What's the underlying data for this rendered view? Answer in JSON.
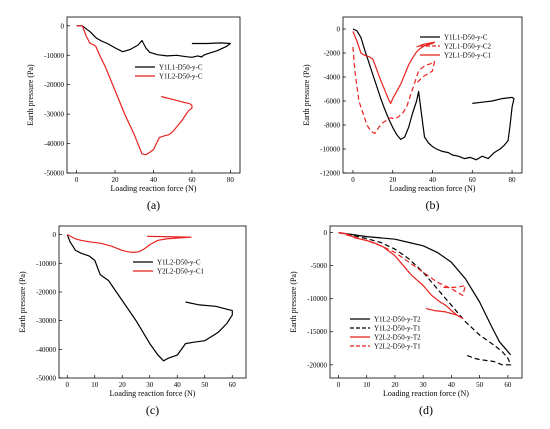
{
  "chart_data": [
    {
      "type": "line",
      "label": "(a)",
      "xlabel": "Loading reaction force (N)",
      "ylabel": "Earth pressure (Pa)",
      "xlim": [
        -5,
        85
      ],
      "ylim": [
        -50000,
        3000
      ],
      "xticks": [
        0,
        20,
        40,
        60,
        80
      ],
      "yticks": [
        0,
        -10000,
        -20000,
        -30000,
        -40000,
        -50000
      ],
      "legend_position": "right",
      "series": [
        {
          "name": "Y1L1-D50-y-C",
          "color": "#000000",
          "dash": "",
          "x": [
            0,
            3,
            5,
            7,
            10,
            13,
            16,
            20,
            24,
            28,
            32,
            34,
            36,
            38,
            42,
            47,
            52,
            57,
            60,
            63,
            65,
            66,
            68,
            73,
            78,
            80,
            75,
            68,
            60
          ],
          "y": [
            0,
            0,
            -1000,
            -2000,
            -4000,
            -5200,
            -6000,
            -7500,
            -8800,
            -8000,
            -6500,
            -5000,
            -7500,
            -9000,
            -9800,
            -10200,
            -10000,
            -10500,
            -10700,
            -10200,
            -10600,
            -10000,
            -9500,
            -8500,
            -7000,
            -6000,
            -5800,
            -6000,
            -6000
          ]
        },
        {
          "name": "Y1L2-D50-y-C",
          "color": "#e8231f",
          "dash": "",
          "x": [
            0,
            3,
            5,
            7,
            9,
            10,
            12,
            15,
            20,
            25,
            30,
            34,
            36,
            38,
            40,
            43,
            45,
            48,
            50,
            55,
            58,
            60,
            60,
            59,
            56,
            50,
            44
          ],
          "y": [
            0,
            0,
            -3500,
            -6000,
            -6500,
            -7000,
            -10000,
            -14000,
            -22000,
            -30000,
            -37000,
            -43500,
            -43800,
            -43000,
            -42000,
            -38000,
            -37500,
            -37000,
            -36000,
            -32000,
            -29000,
            -28000,
            -27000,
            -26500,
            -26000,
            -25000,
            -24000
          ]
        }
      ]
    },
    {
      "type": "line",
      "label": "(b)",
      "xlabel": "Loading reaction force (N)",
      "ylabel": "Earth pressure (Pa)",
      "xlim": [
        -5,
        85
      ],
      "ylim": [
        -12000,
        1000
      ],
      "xticks": [
        0,
        20,
        40,
        60,
        80
      ],
      "yticks": [
        0,
        -2000,
        -4000,
        -6000,
        -8000,
        -10000,
        -12000
      ],
      "legend_position": "top-right",
      "series": [
        {
          "name": "Y1L1-D50-y-C",
          "color": "#000000",
          "dash": "",
          "x": [
            0,
            2,
            4,
            6,
            8,
            10,
            12,
            14,
            16,
            18,
            20,
            22,
            24,
            26,
            28,
            30,
            32,
            33,
            34,
            35,
            36,
            38,
            40,
            42,
            45,
            48,
            50,
            53,
            56,
            59,
            62,
            65,
            68,
            71,
            74,
            76,
            78,
            79,
            80,
            81,
            80,
            75,
            70,
            65,
            60
          ],
          "y": [
            0,
            -150,
            -700,
            -1800,
            -2800,
            -3800,
            -4800,
            -5800,
            -6700,
            -7500,
            -8200,
            -8800,
            -9200,
            -9000,
            -8200,
            -7000,
            -6000,
            -5200,
            -6500,
            -7800,
            -9000,
            -9500,
            -9800,
            -10000,
            -10200,
            -10300,
            -10500,
            -10600,
            -10800,
            -10700,
            -10900,
            -10600,
            -10800,
            -10300,
            -10000,
            -9700,
            -9300,
            -8000,
            -6500,
            -5800,
            -5700,
            -5800,
            -6000,
            -6100,
            -6200
          ]
        },
        {
          "name": "Y2L1-D50-y-C2",
          "color": "#e8231f",
          "dash": "5,3",
          "x": [
            0,
            1,
            3,
            5,
            7,
            9,
            11,
            13,
            15,
            17,
            19,
            21,
            23,
            25,
            27,
            29,
            31,
            33,
            35,
            37,
            39,
            41,
            40,
            38,
            35,
            32
          ],
          "y": [
            -1500,
            -3500,
            -6000,
            -7000,
            -8000,
            -8500,
            -8700,
            -8200,
            -7800,
            -7600,
            -7400,
            -7500,
            -7300,
            -7000,
            -6500,
            -5500,
            -4500,
            -3500,
            -3200,
            -3000,
            -2900,
            -2700,
            -3500,
            -3700,
            -4000,
            -4500
          ]
        },
        {
          "name": "Y2L1-D50-y-C1",
          "color": "#e8231f",
          "dash": "",
          "x": [
            0,
            2,
            4,
            6,
            8,
            10,
            12,
            14,
            16,
            18,
            19,
            20,
            22,
            24,
            26,
            28,
            30,
            32,
            34,
            36,
            38,
            40,
            41,
            38,
            35,
            32
          ],
          "y": [
            -200,
            -1000,
            -2000,
            -2200,
            -2300,
            -2500,
            -3400,
            -4300,
            -5100,
            -5900,
            -6200,
            -5800,
            -5200,
            -4600,
            -3800,
            -3000,
            -2400,
            -1900,
            -1600,
            -1400,
            -1300,
            -1200,
            -1100,
            -1200,
            -1300,
            -1500
          ]
        }
      ]
    },
    {
      "type": "line",
      "label": "(c)",
      "xlabel": "Loading reaction force (N)",
      "ylabel": "Earth pressure (Pa)",
      "xlim": [
        -3,
        65
      ],
      "ylim": [
        -50000,
        3000
      ],
      "xticks": [
        0,
        10,
        20,
        30,
        40,
        50,
        60
      ],
      "yticks": [
        0,
        -10000,
        -20000,
        -30000,
        -40000,
        -50000
      ],
      "legend_position": "top-right",
      "series": [
        {
          "name": "Y1L2-D50-y-C",
          "color": "#000000",
          "dash": "",
          "x": [
            0,
            1,
            2,
            3,
            5,
            8,
            10,
            12,
            15,
            20,
            25,
            30,
            33,
            35,
            37,
            40,
            43,
            46,
            50,
            55,
            58,
            60,
            60,
            58,
            54,
            48,
            43
          ],
          "y": [
            0,
            -2500,
            -4000,
            -5500,
            -6500,
            -7500,
            -9000,
            -14000,
            -16000,
            -23000,
            -30000,
            -38000,
            -42000,
            -44000,
            -43000,
            -42000,
            -38000,
            -37500,
            -37000,
            -34000,
            -31000,
            -28000,
            -26500,
            -26000,
            -25000,
            -24500,
            -23500
          ]
        },
        {
          "name": "Y2L2-D50-y-C1",
          "color": "#e8231f",
          "dash": "",
          "x": [
            0,
            1,
            3,
            5,
            8,
            12,
            16,
            20,
            22,
            24,
            26,
            28,
            30,
            33,
            36,
            40,
            43,
            45,
            40,
            35,
            29
          ],
          "y": [
            0,
            -500,
            -1500,
            -2000,
            -2500,
            -3000,
            -4000,
            -5500,
            -6000,
            -6200,
            -6000,
            -5000,
            -3500,
            -2000,
            -1500,
            -1200,
            -1000,
            -900,
            -800,
            -700,
            -600
          ]
        }
      ]
    },
    {
      "type": "line",
      "label": "(d)",
      "xlabel": "Loading reaction force (N)",
      "ylabel": "Earth pressure (Pa)",
      "xlim": [
        -3,
        65
      ],
      "ylim": [
        -22000,
        1000
      ],
      "xticks": [
        0,
        10,
        20,
        30,
        40,
        50,
        60
      ],
      "yticks": [
        0,
        -5000,
        -10000,
        -15000,
        -20000
      ],
      "legend_position": "bottom-left",
      "series": [
        {
          "name": "Y1L2-D50-y-T2",
          "color": "#000000",
          "dash": "",
          "x": [
            0,
            5,
            10,
            15,
            20,
            25,
            30,
            35,
            40,
            45,
            50,
            54,
            57,
            59,
            60,
            61
          ],
          "y": [
            0,
            -300,
            -600,
            -800,
            -1000,
            -1500,
            -2000,
            -3000,
            -4500,
            -7000,
            -10500,
            -14000,
            -16500,
            -17500,
            -18000,
            -18500
          ]
        },
        {
          "name": "Y1L2-D50-y-T1",
          "color": "#000000",
          "dash": "5,3",
          "x": [
            0,
            5,
            10,
            15,
            20,
            25,
            30,
            35,
            40,
            45,
            50,
            55,
            58,
            60,
            61,
            58,
            55,
            50,
            48,
            45
          ],
          "y": [
            0,
            -400,
            -900,
            -1500,
            -2500,
            -4000,
            -6000,
            -8500,
            -11000,
            -13500,
            -15500,
            -17000,
            -18000,
            -19000,
            -20000,
            -20000,
            -19500,
            -19200,
            -19000,
            -18500
          ]
        },
        {
          "name": "Y2L2-D50-y-T2",
          "color": "#e8231f",
          "dash": "",
          "x": [
            0,
            3,
            6,
            10,
            13,
            16,
            20,
            23,
            26,
            30,
            33,
            36,
            38,
            40,
            42,
            44,
            42,
            38,
            34,
            31
          ],
          "y": [
            0,
            -200,
            -800,
            -1200,
            -1600,
            -2200,
            -3500,
            -5000,
            -6500,
            -8000,
            -9500,
            -10500,
            -11000,
            -11800,
            -12500,
            -13000,
            -12500,
            -12000,
            -11800,
            -11500
          ]
        },
        {
          "name": "Y2L2-D50-y-T1",
          "color": "#e8231f",
          "dash": "5,3",
          "x": [
            0,
            5,
            10,
            15,
            20,
            25,
            30,
            35,
            40,
            44,
            45,
            43,
            40,
            38,
            36
          ],
          "y": [
            0,
            -600,
            -1200,
            -2000,
            -3000,
            -4500,
            -6000,
            -7500,
            -8500,
            -9500,
            -8000,
            -8200,
            -8300,
            -8300,
            -8200
          ]
        }
      ]
    }
  ]
}
